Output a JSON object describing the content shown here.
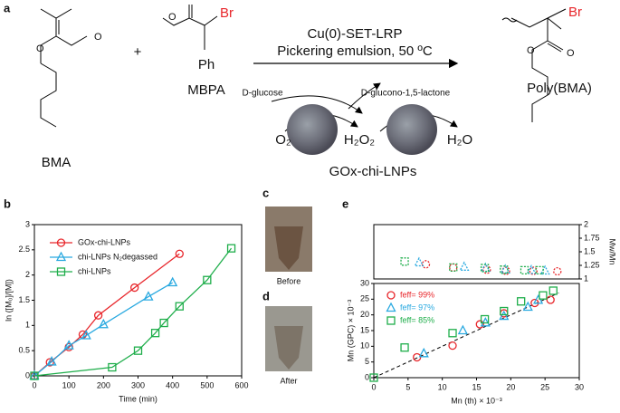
{
  "scheme": {
    "panel_label": "a",
    "plus": "+",
    "conditions": "Cu(0)-SET-LRP",
    "emulsion": "Pickering emulsion, 50 ºC",
    "glucose": "D-glucose",
    "lactone": "D-glucono-1,5-lactone",
    "monomer": "BMA",
    "initiator": "MBPA",
    "initiator_br": "Br",
    "initiator_ph": "Ph",
    "polymer": "Poly(BMA)",
    "polymer_br": "Br",
    "o2": "O₂",
    "h2o2": "H₂O₂",
    "h2o": "H₂O",
    "catalyst": "GOx-chi-LNPs"
  },
  "panels": {
    "c": {
      "label": "c",
      "caption": "Before"
    },
    "d": {
      "label": "d",
      "caption": "After"
    }
  },
  "chart_data": [
    {
      "type": "line",
      "panel_label": "b",
      "x_label": "Time (min)",
      "y_label": "ln ([M₀]/[M])",
      "xlim": [
        0,
        600
      ],
      "xticks": [
        0,
        100,
        200,
        300,
        400,
        500,
        600
      ],
      "ylim": [
        0,
        3
      ],
      "yticks": [
        0,
        0.5,
        1,
        1.5,
        2,
        2.5,
        3
      ],
      "series": [
        {
          "name": "GOx-chi-LNPs",
          "color": "#e8262b",
          "marker": "circle",
          "x": [
            0,
            45,
            100,
            140,
            185,
            290,
            420
          ],
          "values": [
            0,
            0.27,
            0.57,
            0.82,
            1.2,
            1.75,
            2.42
          ]
        },
        {
          "name": "chi-LNPs N₂degassed",
          "color": "#29a9e0",
          "marker": "triangle",
          "x": [
            0,
            50,
            100,
            150,
            200,
            330,
            400
          ],
          "values": [
            0,
            0.28,
            0.6,
            0.8,
            1.02,
            1.57,
            1.85
          ]
        },
        {
          "name": "chi-LNPs",
          "color": "#1fae4b",
          "marker": "square",
          "x": [
            0,
            225,
            300,
            350,
            375,
            420,
            500,
            570
          ],
          "values": [
            0,
            0.17,
            0.5,
            0.85,
            1.05,
            1.38,
            1.9,
            2.53
          ]
        }
      ]
    },
    {
      "type": "scatter",
      "panel_label": "e",
      "x_label": "Mn (th) × 10⁻³",
      "y_label": "Mn (GPC) × 10⁻³",
      "y2_label": "Mw/Mn",
      "xlim": [
        0,
        30
      ],
      "xticks": [
        0,
        5,
        10,
        15,
        20,
        25,
        30
      ],
      "ylim": [
        0,
        30
      ],
      "yticks": [
        0,
        5,
        10,
        15,
        20,
        25,
        30
      ],
      "y2lim": [
        1,
        2
      ],
      "y2ticks": [
        1,
        1.25,
        1.5,
        1.75,
        2
      ],
      "theory_line": {
        "x": [
          0,
          27
        ],
        "values": [
          0,
          27
        ]
      },
      "series": [
        {
          "name": "feff= 99%",
          "color": "#e8262b",
          "marker": "circle",
          "x": [
            6.3,
            11.5,
            15.5,
            19,
            23.5,
            25.8
          ],
          "values": [
            6.5,
            10.2,
            17,
            20.5,
            23.8,
            24.8
          ],
          "dispersity_x": [
            7.6,
            11.6,
            16.5,
            19.3,
            23.3,
            26.8
          ],
          "dispersity": [
            1.27,
            1.21,
            1.17,
            1.15,
            1.15,
            1.14
          ]
        },
        {
          "name": "feff= 97%",
          "color": "#29a9e0",
          "marker": "triangle",
          "x": [
            7.3,
            13,
            16.3,
            19,
            22.5,
            24
          ],
          "values": [
            7.7,
            15,
            17.5,
            19.6,
            22.5,
            24.7
          ],
          "dispersity_x": [
            6.6,
            13.2,
            16.3,
            19.2,
            23,
            25
          ],
          "dispersity": [
            1.3,
            1.22,
            1.2,
            1.17,
            1.16,
            1.15
          ]
        },
        {
          "name": "feff= 85%",
          "color": "#1fae4b",
          "marker": "square",
          "x": [
            0,
            4.5,
            11.5,
            16.2,
            19,
            21.5,
            24.7,
            26.2
          ],
          "values": [
            0,
            9.6,
            14.2,
            18.6,
            21.2,
            24.3,
            26.2,
            27.7
          ],
          "dispersity_x": [
            4.5,
            11.6,
            16.2,
            19,
            22,
            24.2
          ],
          "dispersity": [
            1.32,
            1.21,
            1.2,
            1.17,
            1.16,
            1.16
          ]
        }
      ]
    }
  ]
}
